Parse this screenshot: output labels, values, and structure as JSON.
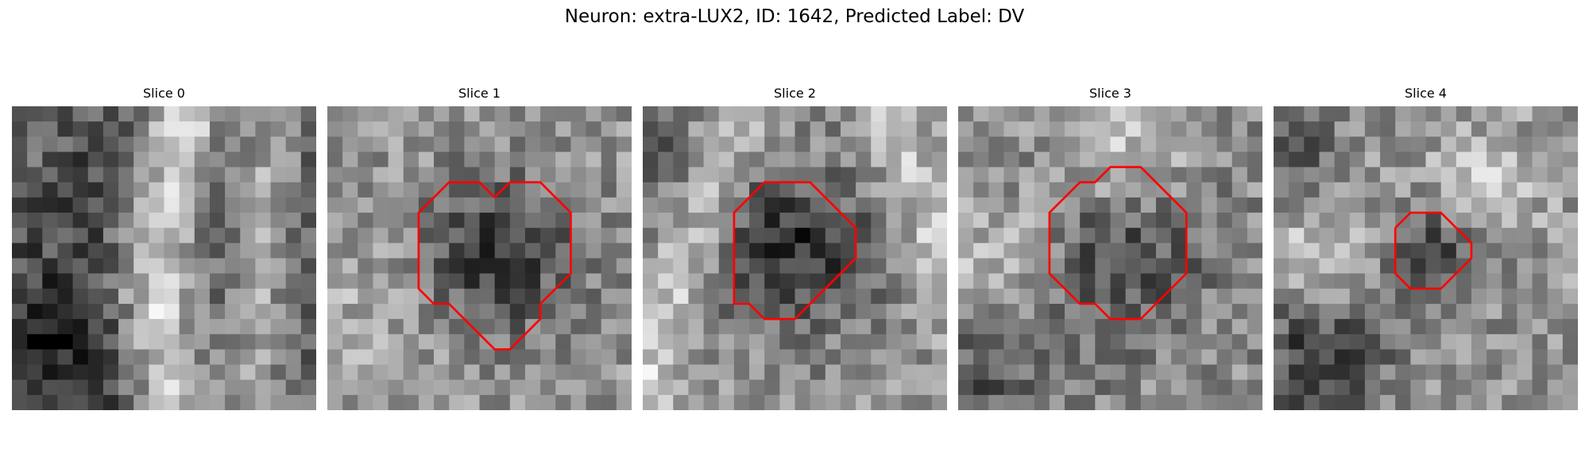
{
  "figure": {
    "title": "Neuron: extra-LUX2, ID: 1642, Predicted Label: DV"
  },
  "colors": {
    "contour": "#ff0000",
    "background": "#ffffff"
  },
  "panels": [
    {
      "title": "Slice 0",
      "contour": [],
      "seed": 11,
      "pattern": "diagonal-bright-band"
    },
    {
      "title": "Slice 1",
      "contour": [
        [
          11,
          6
        ],
        [
          12,
          5
        ],
        [
          13,
          5
        ],
        [
          14,
          5
        ],
        [
          15,
          6
        ],
        [
          16,
          7
        ],
        [
          16,
          8
        ],
        [
          16,
          9
        ],
        [
          16,
          10
        ],
        [
          16,
          11
        ],
        [
          15,
          12
        ],
        [
          14,
          13
        ],
        [
          14,
          14
        ],
        [
          13,
          15
        ],
        [
          12,
          16
        ],
        [
          11,
          16
        ],
        [
          10,
          15
        ],
        [
          9,
          14
        ],
        [
          8,
          13
        ],
        [
          7,
          13
        ],
        [
          6,
          12
        ],
        [
          6,
          11
        ],
        [
          6,
          10
        ],
        [
          6,
          9
        ],
        [
          6,
          8
        ],
        [
          6,
          7
        ],
        [
          7,
          6
        ],
        [
          8,
          5
        ],
        [
          9,
          5
        ],
        [
          10,
          5
        ]
      ],
      "seed": 23,
      "pattern": "dark-blob"
    },
    {
      "title": "Slice 2",
      "contour": [
        [
          7,
          6
        ],
        [
          8,
          5
        ],
        [
          9,
          5
        ],
        [
          10,
          5
        ],
        [
          11,
          5
        ],
        [
          12,
          6
        ],
        [
          13,
          7
        ],
        [
          14,
          8
        ],
        [
          14,
          9
        ],
        [
          14,
          10
        ],
        [
          13,
          11
        ],
        [
          12,
          12
        ],
        [
          11,
          13
        ],
        [
          10,
          14
        ],
        [
          9,
          14
        ],
        [
          8,
          14
        ],
        [
          7,
          13
        ],
        [
          6,
          13
        ],
        [
          6,
          12
        ],
        [
          6,
          11
        ],
        [
          6,
          10
        ],
        [
          6,
          9
        ],
        [
          6,
          8
        ],
        [
          6,
          7
        ]
      ],
      "seed": 37,
      "pattern": "dark-blob-bright-band"
    },
    {
      "title": "Slice 3",
      "contour": [
        [
          8,
          5
        ],
        [
          9,
          5
        ],
        [
          10,
          4
        ],
        [
          11,
          4
        ],
        [
          12,
          4
        ],
        [
          13,
          5
        ],
        [
          14,
          6
        ],
        [
          15,
          7
        ],
        [
          15,
          8
        ],
        [
          15,
          9
        ],
        [
          15,
          10
        ],
        [
          15,
          11
        ],
        [
          14,
          12
        ],
        [
          13,
          13
        ],
        [
          12,
          14
        ],
        [
          11,
          14
        ],
        [
          10,
          14
        ],
        [
          9,
          13
        ],
        [
          8,
          13
        ],
        [
          7,
          12
        ],
        [
          6,
          11
        ],
        [
          6,
          10
        ],
        [
          6,
          9
        ],
        [
          6,
          8
        ],
        [
          6,
          7
        ],
        [
          7,
          6
        ]
      ],
      "seed": 51,
      "pattern": "dark-blob-bright-top"
    },
    {
      "title": "Slice 4",
      "contour": [
        [
          8,
          8
        ],
        [
          9,
          7
        ],
        [
          10,
          7
        ],
        [
          11,
          7
        ],
        [
          12,
          8
        ],
        [
          13,
          9
        ],
        [
          13,
          10
        ],
        [
          12,
          11
        ],
        [
          11,
          12
        ],
        [
          10,
          12
        ],
        [
          9,
          12
        ],
        [
          8,
          11
        ],
        [
          8,
          10
        ],
        [
          8,
          9
        ]
      ],
      "seed": 67,
      "pattern": "small-dark-blob"
    }
  ]
}
